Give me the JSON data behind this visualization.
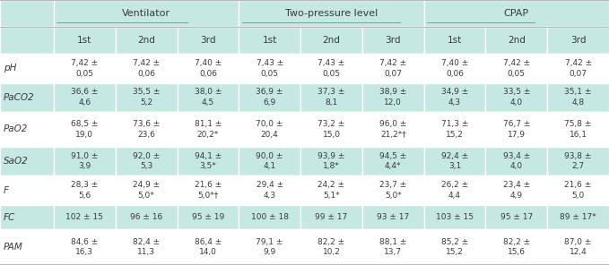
{
  "col_groups": [
    {
      "label": "Ventilator",
      "span": [
        1,
        3
      ]
    },
    {
      "label": "Two-pressure level",
      "span": [
        4,
        6
      ]
    },
    {
      "label": "CPAP",
      "span": [
        7,
        9
      ]
    }
  ],
  "sub_headers": [
    "1st",
    "2nd",
    "3rd",
    "1st",
    "2nd",
    "3rd",
    "1st",
    "2nd",
    "3rd"
  ],
  "row_labels": [
    "pH",
    "PaCO2",
    "PaO2",
    "SaO2",
    "F",
    "FC",
    "PAM"
  ],
  "cells": [
    [
      "7,42 ±\n0,05",
      "7,42 ±\n0,06",
      "7,40 ±\n0,06",
      "7,43 ±\n0,05",
      "7,43 ±\n0,05",
      "7,42 ±\n0,07",
      "7,40 ±\n0,06",
      "7,42 ±\n0,05",
      "7,42 ±\n0,07"
    ],
    [
      "36,6 ±\n4,6",
      "35,5 ±\n5,2",
      "38,0 ±\n4,5",
      "36,9 ±\n6,9",
      "37,3 ±\n8,1",
      "38,9 ±\n12,0",
      "34,9 ±\n4,3",
      "33,5 ±\n4,0",
      "35,1 ±\n4,8"
    ],
    [
      "68,5 ±\n19,0",
      "73,6 ±\n23,6",
      "81,1 ±\n20,2*",
      "70,0 ±\n20,4",
      "73,2 ±\n15,0",
      "96,0 ±\n21,2*†",
      "71,3 ±\n15,2",
      "76,7 ±\n17,9",
      "75,8 ±\n16,1"
    ],
    [
      "91,0 ±\n3,9",
      "92,0 ±\n5,3",
      "94,1 ±\n3,5*",
      "90,0 ±\n4,1",
      "93,9 ±\n1,8*",
      "94,5 ±\n4,4*",
      "92,4 ±\n3,1",
      "93,4 ±\n4,0",
      "93,8 ±\n2,7"
    ],
    [
      "28,3 ±\n5,6",
      "24,9 ±\n5,0*",
      "21,6 ±\n5,0*†",
      "29,4 ±\n4,3",
      "24,2 ±\n5,1*",
      "23,7 ±\n5,0*",
      "26,2 ±\n4,4",
      "23,4 ±\n4,9",
      "21,6 ±\n5,0"
    ],
    [
      "102 ± 15",
      "96 ± 16",
      "95 ± 19",
      "100 ± 18",
      "99 ± 17",
      "93 ± 17",
      "103 ± 15",
      "95 ± 17",
      "89 ± 17*"
    ],
    [
      "84,6 ±\n16,3",
      "82,4 ±\n11,3",
      "86,4 ±\n14,0",
      "79,1 ±\n9,9",
      "82,2 ±\n10,2",
      "88,1 ±\n13,7",
      "85,2 ±\n15,2",
      "82,2 ±\n15,6",
      "87,0 ±\n12,4"
    ]
  ],
  "bg_header": "#c5e8e3",
  "bg_subheader": "#c5e8e3",
  "bg_row_even": "#ffffff",
  "bg_row_odd": "#c5e8e3",
  "text_color": "#3a3a3a",
  "header_text_color": "#3a3a3a",
  "border_color": "#aaaaaa",
  "cell_border_color": "#ffffff"
}
